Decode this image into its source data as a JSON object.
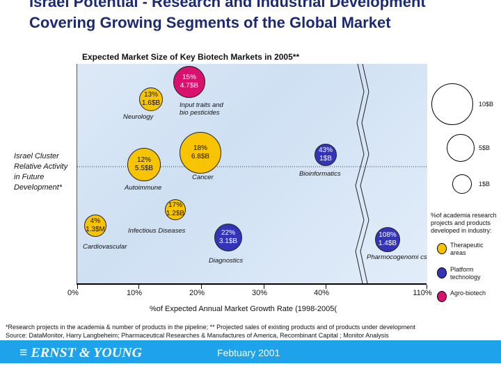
{
  "title": "Israel Potential - Research and Industrial Development Covering Growing Segments of the Global Market",
  "chart_data": {
    "type": "bubble",
    "title": "Expected Market Size of Key Biotech Markets in 2005**",
    "xlabel": "%of Expected Annual Market Growth Rate (1998-2005(",
    "ylabel": "Israel Cluster Relative Activity in Future Development*",
    "x_ticks": [
      "0%",
      "10%",
      "20%",
      "30%",
      "40%",
      "110%"
    ],
    "axis_break": "between 40% and 110%",
    "reference_line": "dotted horizontal",
    "colors": {
      "therapeutic": "#f8c400",
      "platform": "#3434b8",
      "agro": "#d8116e"
    },
    "points": [
      {
        "name": "Neurology",
        "growth": "13%",
        "size": "1.6$B",
        "category": "therapeutic"
      },
      {
        "name": "Input traits and bio pesticides",
        "growth": "15%",
        "size": "4.7$B",
        "category": "agro"
      },
      {
        "name": "Autoimmune",
        "growth": "12%",
        "size": "5.5$B",
        "category": "therapeutic"
      },
      {
        "name": "Cancer",
        "growth": "18%",
        "size": "6.8$B",
        "category": "therapeutic"
      },
      {
        "name": "Bioinformatics",
        "growth": "43%",
        "size": "1$B",
        "category": "platform"
      },
      {
        "name": "Cardiovascular",
        "growth": "4%",
        "size": "1.3$M",
        "category": "therapeutic"
      },
      {
        "name": "Infectious Diseases",
        "growth": "17%",
        "size": "1.2$B",
        "category": "therapeutic"
      },
      {
        "name": "Diagnostics",
        "growth": "22%",
        "size": "3.1$B",
        "category": "platform"
      },
      {
        "name": "Pharmocogenomi cs",
        "growth": "108%",
        "size": "1.4$B",
        "category": "platform"
      }
    ],
    "size_legend": [
      "10$B",
      "5$B",
      "1$B"
    ],
    "legend_title": "%of academia research projects and products developed in industry:",
    "legend": [
      "Therapeutic areas",
      "Platform technology",
      "Agro-biotech"
    ]
  },
  "notes": [
    "*Research projects in the academia & number of products in the pipeline;  ** Projected sales of existing products and of products under development",
    "Source: DataMonitor, Harry Langbeheim; Pharmaceutical Researches & Manufactures of America, Recombinant Capital ; Monitor Analysis"
  ],
  "footer": {
    "logo": "Ernst & Young",
    "date": "Febtuary 2001"
  }
}
